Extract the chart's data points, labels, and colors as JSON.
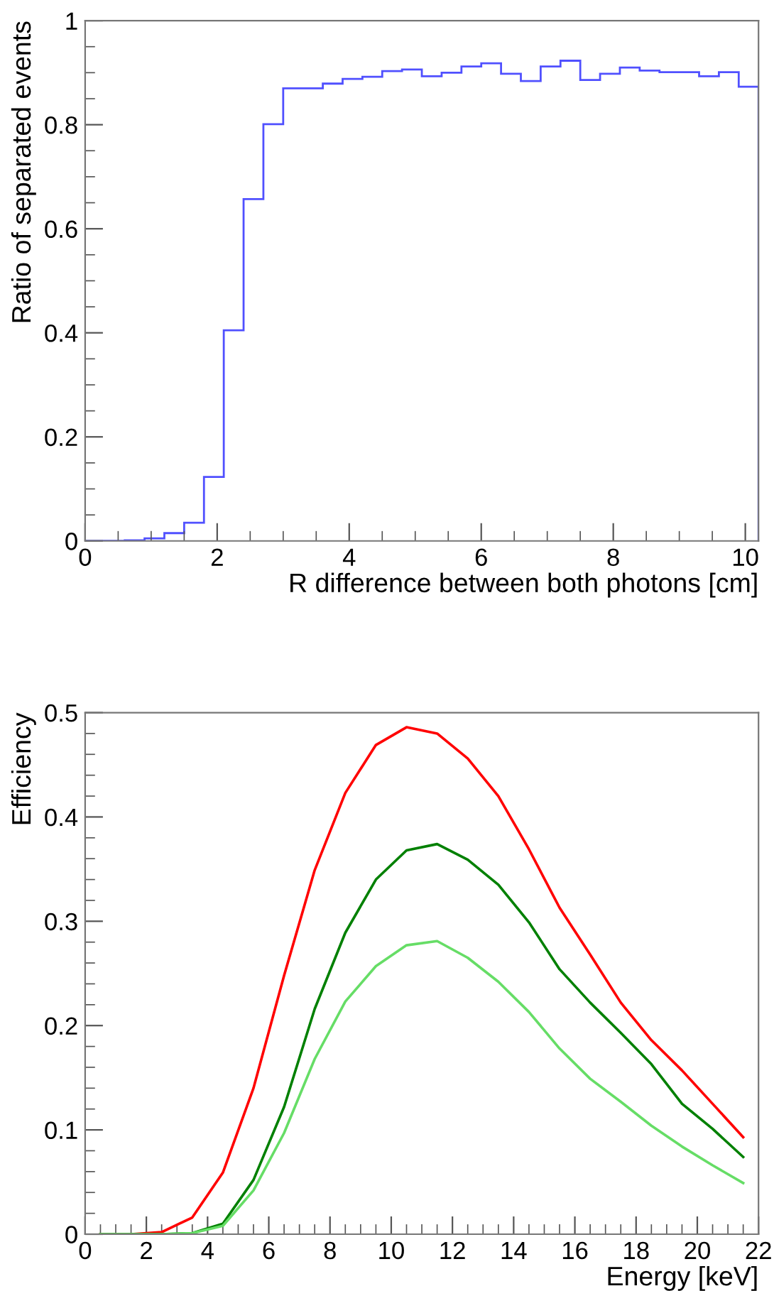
{
  "chart_data": [
    {
      "type": "histogram",
      "xlabel": "R difference between both photons [cm]",
      "ylabel": "Ratio of separated events",
      "color": "#5050ff",
      "bins": [
        0,
        0.3,
        0.6,
        0.9,
        1.2,
        1.5,
        1.8,
        2.1,
        2.4,
        2.7,
        3.0,
        3.3,
        3.6,
        3.9,
        4.2,
        4.5,
        4.8,
        5.1,
        5.4,
        5.7,
        6.0,
        6.3,
        6.6,
        6.9,
        7.2,
        7.5,
        7.8,
        8.1,
        8.4,
        8.7,
        9.0,
        9.3,
        9.6,
        9.9,
        10.2
      ],
      "values": [
        0,
        0,
        0.001,
        0.005,
        0.015,
        0.035,
        0.123,
        0.405,
        0.657,
        0.801,
        0.87,
        0.87,
        0.879,
        0.888,
        0.892,
        0.903,
        0.906,
        0.893,
        0.9,
        0.912,
        0.918,
        0.898,
        0.884,
        0.912,
        0.923,
        0.886,
        0.898,
        0.91,
        0.904,
        0.901,
        0.901,
        0.893,
        0.901,
        0.873
      ],
      "xlim": [
        0,
        10.2
      ],
      "xticks": [
        0,
        2,
        4,
        6,
        8,
        10
      ],
      "ylim": [
        0,
        1
      ],
      "yticks": [
        0,
        0.2,
        0.4,
        0.6,
        0.8,
        1
      ]
    },
    {
      "type": "line",
      "xlabel": "Energy [keV]",
      "ylabel": "Efficiency",
      "x": [
        0.5,
        1.5,
        2.5,
        3.5,
        4.5,
        5.5,
        6.5,
        7.5,
        8.5,
        9.5,
        10.5,
        11.5,
        12.5,
        13.5,
        14.5,
        15.5,
        16.5,
        17.5,
        18.5,
        19.5,
        20.5,
        21.5
      ],
      "series": [
        {
          "color": "#ff0000",
          "values": [
            0,
            0,
            0.002,
            0.016,
            0.059,
            0.14,
            0.248,
            0.349,
            0.423,
            0.469,
            0.486,
            0.48,
            0.456,
            0.42,
            0.369,
            0.313,
            0.268,
            0.222,
            0.186,
            0.157,
            0.125,
            0.093
          ]
        },
        {
          "color": "#008000",
          "values": [
            0,
            0,
            0,
            0.001,
            0.01,
            0.052,
            0.122,
            0.216,
            0.289,
            0.34,
            0.368,
            0.374,
            0.359,
            0.335,
            0.299,
            0.254,
            0.222,
            0.193,
            0.163,
            0.125,
            0.101,
            0.074
          ]
        },
        {
          "color": "#66dd66",
          "values": [
            0,
            0,
            0,
            0.001,
            0.008,
            0.042,
            0.097,
            0.168,
            0.223,
            0.257,
            0.277,
            0.281,
            0.265,
            0.242,
            0.213,
            0.178,
            0.149,
            0.127,
            0.104,
            0.084,
            0.066,
            0.049
          ]
        }
      ],
      "xlim": [
        0,
        22
      ],
      "xticks": [
        0,
        2,
        4,
        6,
        8,
        10,
        12,
        14,
        16,
        18,
        20,
        22
      ],
      "ylim": [
        0,
        0.5
      ],
      "yticks": [
        0,
        0.1,
        0.2,
        0.3,
        0.4,
        0.5
      ]
    }
  ]
}
